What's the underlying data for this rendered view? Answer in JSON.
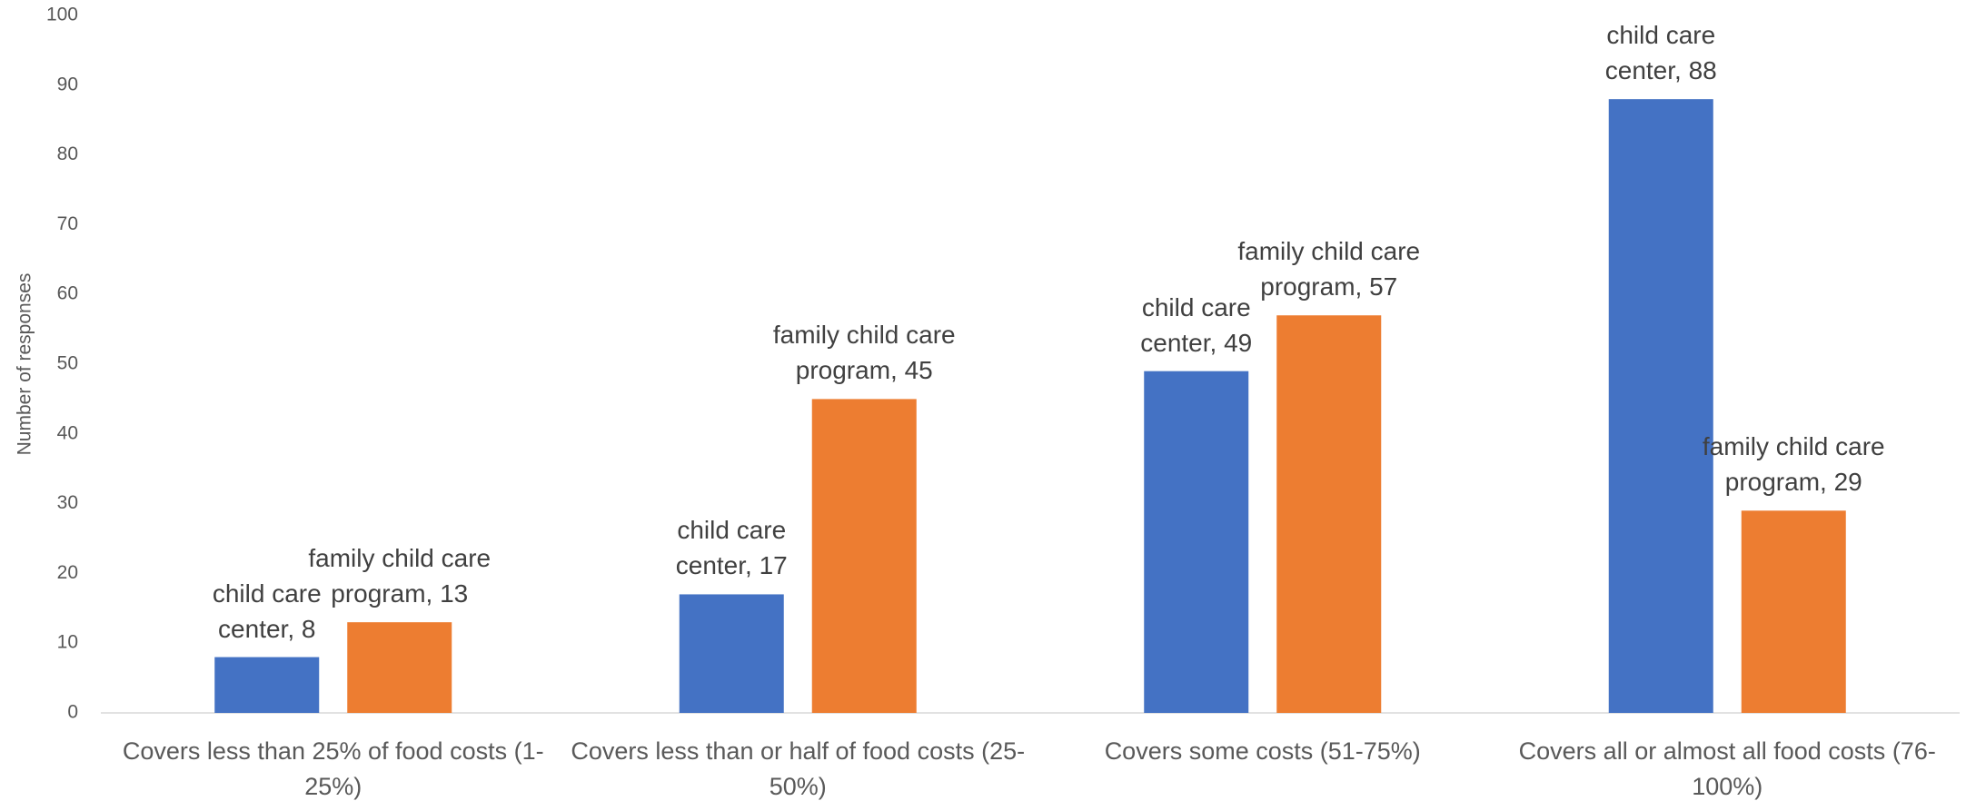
{
  "chart_data": {
    "type": "bar",
    "y_label": "Number of responses",
    "categories": [
      "Covers less than 25% of food costs (1-25%)",
      "Covers less than or half of food costs (25-50%)",
      "Covers some costs (51-75%)",
      "Covers all or almost all food costs (76-100%)"
    ],
    "series": [
      {
        "name": "child care center",
        "color": "#4472c4",
        "values": [
          8,
          17,
          49,
          88
        ],
        "value_labels": [
          "child care center, 8",
          "child care center, 17",
          "child care center, 49",
          "child care center, 88"
        ]
      },
      {
        "name": "family child care program",
        "color": "#ed7d31",
        "values": [
          13,
          45,
          57,
          29
        ],
        "value_labels": [
          "family child care program, 13",
          "family child care program, 45",
          "family child care program, 57",
          "family child care program, 29"
        ]
      }
    ],
    "ylim": [
      0,
      100
    ],
    "yticks": [
      0,
      10,
      20,
      30,
      40,
      50,
      60,
      70,
      80,
      90,
      100
    ],
    "grid": false
  }
}
